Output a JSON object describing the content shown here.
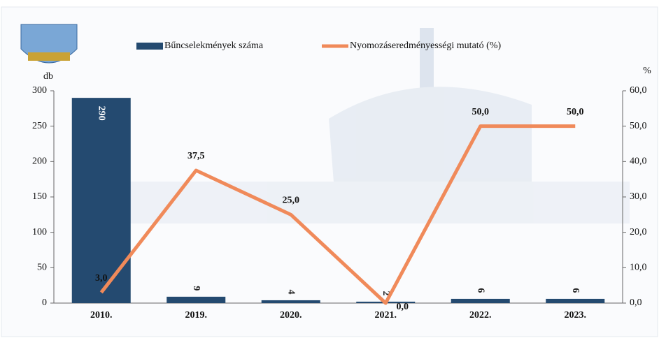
{
  "chart_data": {
    "type": "bar_line",
    "categories": [
      "2010.",
      "2019.",
      "2020.",
      "2021.",
      "2022.",
      "2023."
    ],
    "series": [
      {
        "name": "Bűncselekmények száma",
        "color": "#244a70",
        "type": "bar",
        "values": [
          290,
          9,
          4,
          2,
          6,
          6
        ]
      },
      {
        "name": "Nyomozáseredményességi mutató (%)",
        "color": "#f08a5a",
        "type": "line",
        "axis": "y2",
        "values": [
          3.0,
          37.5,
          25.0,
          0.0,
          50.0,
          50.0
        ],
        "value_labels": [
          "3,0",
          "37,5",
          "25,0",
          "0,0",
          "50,0",
          "50,0"
        ]
      }
    ],
    "ylabel": "db",
    "y2label": "%",
    "ylim": [
      0,
      300
    ],
    "yticks": [
      0,
      50,
      100,
      150,
      200,
      250,
      300
    ],
    "y2lim": [
      0,
      60
    ],
    "y2ticks": [
      {
        "value": 0,
        "label": "0,0"
      },
      {
        "value": 10,
        "label": "10,0"
      },
      {
        "value": 20,
        "label": "20,0"
      },
      {
        "value": 30,
        "label": "30,0"
      },
      {
        "value": 40,
        "label": "40,0"
      },
      {
        "value": 50,
        "label": "50,0"
      },
      {
        "value": 60,
        "label": "60,0"
      }
    ]
  }
}
